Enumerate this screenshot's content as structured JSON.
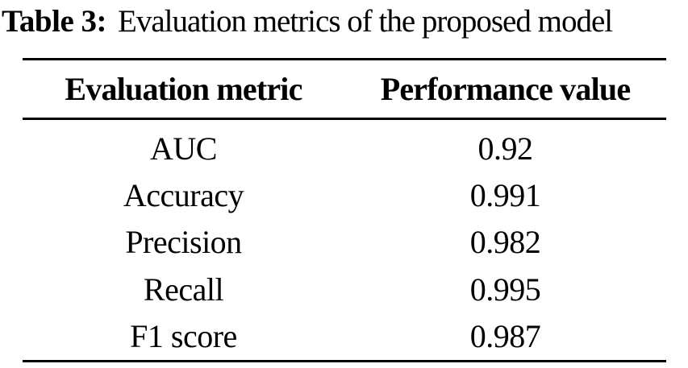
{
  "caption": {
    "label": "Table 3:",
    "text": "Evaluation metrics of the proposed model"
  },
  "table": {
    "columns": [
      "Evaluation metric",
      "Performance value"
    ],
    "rows": [
      {
        "metric": "AUC",
        "value": "0.92"
      },
      {
        "metric": "Accuracy",
        "value": "0.991"
      },
      {
        "metric": "Precision",
        "value": "0.982"
      },
      {
        "metric": "Recall",
        "value": "0.995"
      },
      {
        "metric": "F1 score",
        "value": "0.987"
      }
    ]
  },
  "colors": {
    "text": "#000000",
    "background": "#ffffff",
    "rule": "#000000"
  }
}
